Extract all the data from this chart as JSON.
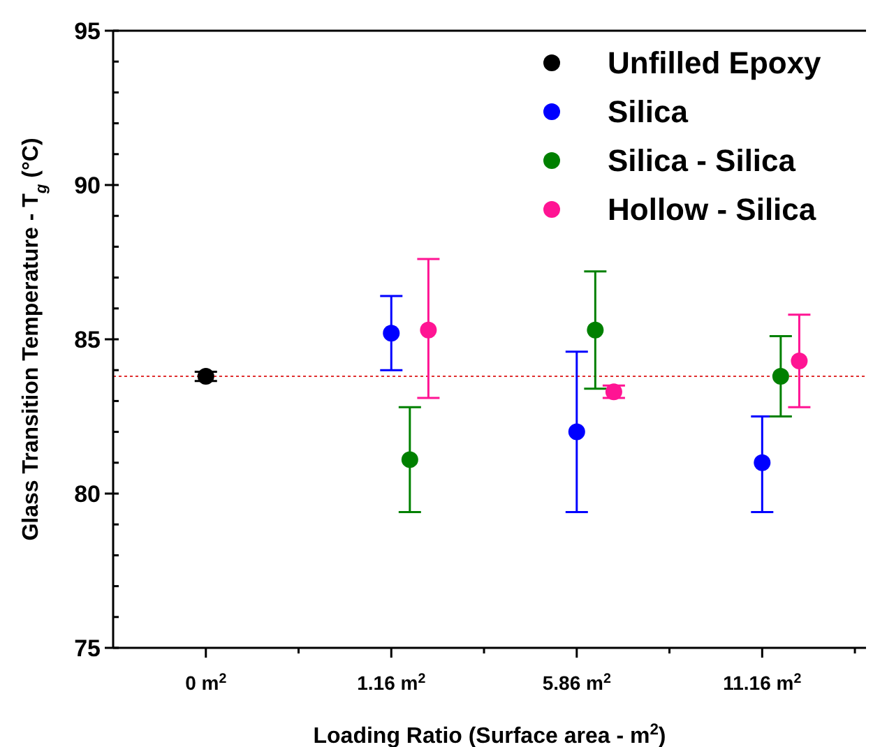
{
  "chart_data": {
    "type": "scatter",
    "xlabel": "Loading Ratio (Surface area - m$^{2}$)",
    "ylabel": "Glass Transition Temperature - T$_{g}$ (°C)",
    "categories": [
      "0 m$^{2}$",
      "1.16 m$^{2}$",
      "5.86 m$^{2}$",
      "11.16 m$^{2}$"
    ],
    "ylim": [
      75,
      95
    ],
    "yticks": [
      75,
      80,
      85,
      90,
      95
    ],
    "legend": "top right",
    "marker": "circle",
    "grid": false,
    "ref_lines": [
      {
        "axis": "y",
        "value": 83.8,
        "color": "#e03030",
        "line_style": "dotted"
      }
    ],
    "series": [
      {
        "name": "Unfilled Epoxy",
        "color": "#000000",
        "x": [
          "0 m$^{2}$"
        ],
        "values": [
          83.8
        ],
        "errors": [
          0.15
        ]
      },
      {
        "name": "Silica",
        "color": "#0000ff",
        "x": [
          "1.16 m$^{2}$",
          "5.86 m$^{2}$",
          "11.16 m$^{2}$"
        ],
        "values": [
          85.2,
          82.0,
          81.0
        ],
        "errors": [
          [
            84.0,
            86.4
          ],
          [
            79.4,
            84.6
          ],
          [
            79.4,
            82.5
          ]
        ]
      },
      {
        "name": "Silica - Silica",
        "color": "#008000",
        "x": [
          "1.16 m$^{2}$",
          "5.86 m$^{2}$",
          "11.16 m$^{2}$"
        ],
        "values": [
          81.1,
          85.3,
          83.8
        ],
        "errors": [
          [
            79.4,
            82.8
          ],
          [
            83.4,
            87.2
          ],
          [
            82.5,
            85.1
          ]
        ]
      },
      {
        "name": "Hollow - Silica",
        "color": "#ff1493",
        "x": [
          "1.16 m$^{2}$",
          "5.86 m$^{2}$",
          "11.16 m$^{2}$"
        ],
        "values": [
          85.3,
          83.3,
          84.3
        ],
        "errors": [
          [
            83.1,
            87.6
          ],
          [
            83.1,
            83.5
          ],
          [
            82.8,
            85.8
          ]
        ]
      }
    ]
  }
}
